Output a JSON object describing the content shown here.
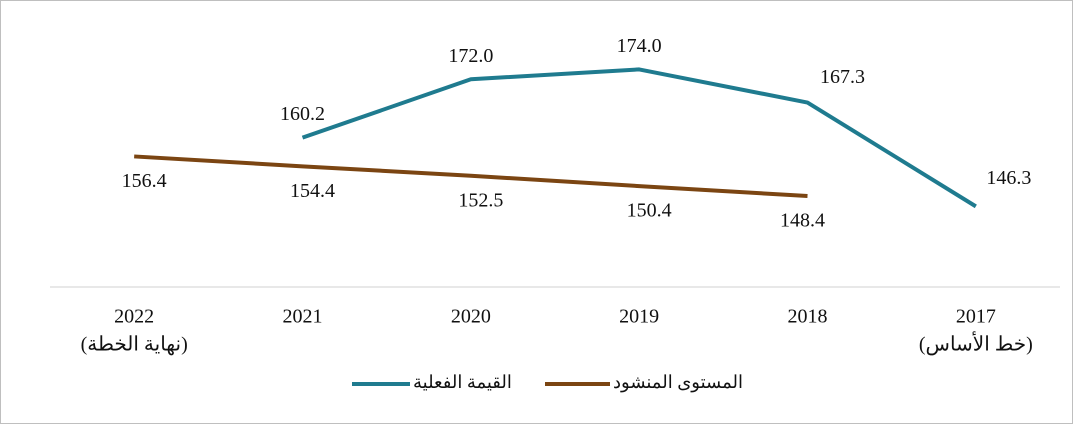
{
  "chart_data": {
    "type": "line",
    "categories": [
      "2017",
      "2018",
      "2019",
      "2020",
      "2021",
      "2022"
    ],
    "category_sublabels": [
      "(خط الأساس)",
      null,
      null,
      null,
      null,
      "(نهاية الخطة)"
    ],
    "series": [
      {
        "name": "القيمة الفعلية",
        "color": "#1f7b8f",
        "values": [
          146.3,
          167.3,
          174.0,
          172.0,
          160.2,
          null
        ],
        "value_labels": [
          "146.3",
          "167.3",
          "174.0",
          "172.0",
          "160.2",
          null
        ]
      },
      {
        "name": "المستوى المنشود",
        "color": "#7b4512",
        "values": [
          null,
          148.4,
          150.4,
          152.5,
          154.4,
          156.4
        ],
        "value_labels": [
          null,
          "148.4",
          "150.4",
          "152.5",
          "154.4",
          "156.4"
        ]
      }
    ],
    "ylim": [
      130,
      185
    ],
    "grid": false
  }
}
